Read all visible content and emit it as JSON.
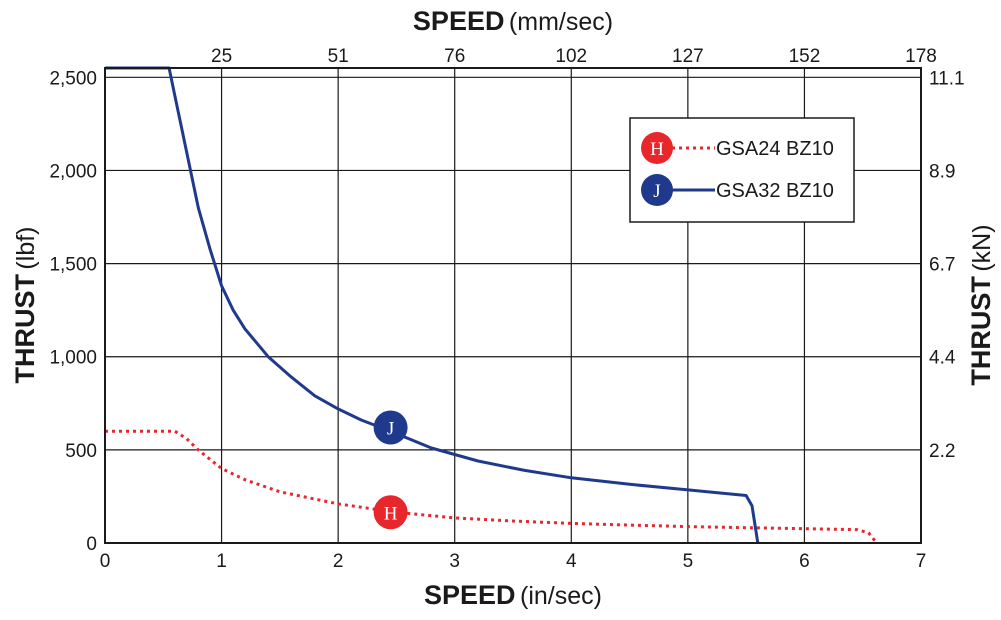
{
  "chart_data": {
    "type": "line",
    "axes": {
      "bottom": {
        "label_bold": "SPEED",
        "label_unit": "(in/sec)",
        "ticks": [
          "0",
          "1",
          "2",
          "3",
          "4",
          "5",
          "6",
          "7"
        ],
        "range": [
          0,
          7
        ]
      },
      "top": {
        "label_bold": "SPEED",
        "label_unit": "(mm/sec)",
        "ticks": [
          "25",
          "51",
          "76",
          "102",
          "127",
          "152",
          "178"
        ]
      },
      "left": {
        "label_bold": "THRUST",
        "label_unit": "(lbf)",
        "ticks": [
          "0",
          "500",
          "1,000",
          "1,500",
          "2,000",
          "2,500"
        ],
        "tick_values": [
          0,
          500,
          1000,
          1500,
          2000,
          2500
        ],
        "range": [
          0,
          2550
        ]
      },
      "right": {
        "label_bold": "THRUST",
        "label_unit": "(kN)",
        "ticks": [
          "2.2",
          "4.4",
          "6.7",
          "8.9",
          "11.1"
        ]
      }
    },
    "grid": true,
    "legend_placement": "top-right",
    "series": [
      {
        "name": "GSA24 BZ10",
        "marker": "H",
        "color": "#e8272c",
        "line_style": "dotted",
        "x": [
          0,
          0.6,
          0.7,
          0.8,
          0.9,
          1.0,
          1.2,
          1.5,
          2.0,
          2.5,
          3.0,
          3.5,
          4.0,
          4.5,
          5.0,
          5.5,
          6.0,
          6.45,
          6.55,
          6.62
        ],
        "y": [
          600,
          600,
          560,
          500,
          450,
          400,
          340,
          275,
          210,
          165,
          135,
          118,
          105,
          96,
          88,
          82,
          77,
          72,
          55,
          0
        ],
        "label_at": [
          2.45,
          165
        ]
      },
      {
        "name": "GSA32 BZ10",
        "marker": "J",
        "color": "#1f3a8c",
        "line_style": "solid",
        "x": [
          0,
          0.55,
          0.6,
          0.7,
          0.8,
          0.9,
          1.0,
          1.1,
          1.2,
          1.4,
          1.6,
          1.8,
          2.0,
          2.2,
          2.45,
          2.8,
          3.2,
          3.6,
          4.0,
          4.5,
          5.0,
          5.5,
          5.55,
          5.58,
          5.6
        ],
        "y": [
          2550,
          2550,
          2400,
          2100,
          1800,
          1580,
          1380,
          1250,
          1150,
          1000,
          890,
          790,
          720,
          660,
          600,
          510,
          440,
          390,
          350,
          315,
          285,
          255,
          200,
          80,
          0
        ],
        "label_at": [
          2.45,
          620
        ]
      }
    ]
  }
}
